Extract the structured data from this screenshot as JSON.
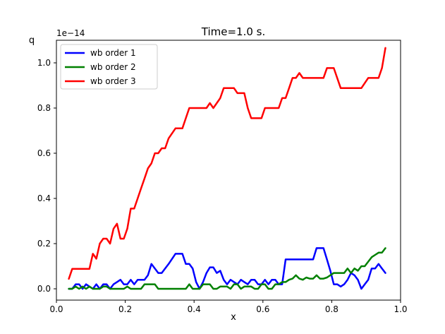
{
  "chart_data": {
    "type": "line",
    "title": "Time=1.0 s.",
    "xlabel": "x",
    "ylabel": "q",
    "y_offset_label": "1e−14",
    "xlim": [
      0.0,
      1.0
    ],
    "ylim": [
      -0.05,
      1.1
    ],
    "x_ticks": [
      0.0,
      0.2,
      0.4,
      0.6,
      0.8,
      1.0
    ],
    "x_tick_labels": [
      "0.0",
      "0.2",
      "0.4",
      "0.6",
      "0.8",
      "1.0"
    ],
    "y_ticks": [
      0.0,
      0.2,
      0.4,
      0.6,
      0.8,
      1.0
    ],
    "y_tick_labels": [
      "0.0",
      "0.2",
      "0.4",
      "0.6",
      "0.8",
      "1.0"
    ],
    "grid": false,
    "legend_position": "top-left",
    "series": [
      {
        "name": "wb order 1",
        "color": "#0000ff",
        "points": [
          [
            0.036,
            0.0
          ],
          [
            0.046,
            0.0
          ],
          [
            0.056,
            0.02
          ],
          [
            0.066,
            0.02
          ],
          [
            0.076,
            0.0
          ],
          [
            0.086,
            0.02
          ],
          [
            0.096,
            0.01
          ],
          [
            0.106,
            0.0
          ],
          [
            0.116,
            0.02
          ],
          [
            0.126,
            0.0
          ],
          [
            0.136,
            0.02
          ],
          [
            0.146,
            0.02
          ],
          [
            0.156,
            0.0
          ],
          [
            0.166,
            0.02
          ],
          [
            0.176,
            0.03
          ],
          [
            0.186,
            0.04
          ],
          [
            0.196,
            0.02
          ],
          [
            0.206,
            0.02
          ],
          [
            0.216,
            0.04
          ],
          [
            0.226,
            0.02
          ],
          [
            0.236,
            0.04
          ],
          [
            0.256,
            0.04
          ],
          [
            0.266,
            0.06
          ],
          [
            0.276,
            0.11
          ],
          [
            0.286,
            0.09
          ],
          [
            0.296,
            0.07
          ],
          [
            0.306,
            0.07
          ],
          [
            0.326,
            0.11
          ],
          [
            0.346,
            0.155
          ],
          [
            0.366,
            0.155
          ],
          [
            0.376,
            0.11
          ],
          [
            0.386,
            0.11
          ],
          [
            0.396,
            0.09
          ],
          [
            0.406,
            0.03
          ],
          [
            0.416,
            0.0
          ],
          [
            0.426,
            0.03
          ],
          [
            0.436,
            0.07
          ],
          [
            0.446,
            0.095
          ],
          [
            0.456,
            0.095
          ],
          [
            0.466,
            0.07
          ],
          [
            0.476,
            0.08
          ],
          [
            0.486,
            0.04
          ],
          [
            0.496,
            0.02
          ],
          [
            0.506,
            0.04
          ],
          [
            0.516,
            0.03
          ],
          [
            0.526,
            0.02
          ],
          [
            0.536,
            0.04
          ],
          [
            0.546,
            0.03
          ],
          [
            0.556,
            0.02
          ],
          [
            0.566,
            0.04
          ],
          [
            0.576,
            0.04
          ],
          [
            0.586,
            0.02
          ],
          [
            0.596,
            0.02
          ],
          [
            0.606,
            0.04
          ],
          [
            0.616,
            0.02
          ],
          [
            0.626,
            0.04
          ],
          [
            0.636,
            0.04
          ],
          [
            0.646,
            0.02
          ],
          [
            0.656,
            0.02
          ],
          [
            0.666,
            0.13
          ],
          [
            0.686,
            0.13
          ],
          [
            0.706,
            0.13
          ],
          [
            0.726,
            0.13
          ],
          [
            0.746,
            0.13
          ],
          [
            0.756,
            0.18
          ],
          [
            0.776,
            0.18
          ],
          [
            0.786,
            0.13
          ],
          [
            0.796,
            0.08
          ],
          [
            0.806,
            0.02
          ],
          [
            0.816,
            0.02
          ],
          [
            0.826,
            0.01
          ],
          [
            0.836,
            0.02
          ],
          [
            0.846,
            0.04
          ],
          [
            0.856,
            0.07
          ],
          [
            0.866,
            0.06
          ],
          [
            0.876,
            0.04
          ],
          [
            0.886,
            0.0
          ],
          [
            0.896,
            0.02
          ],
          [
            0.906,
            0.04
          ],
          [
            0.916,
            0.09
          ],
          [
            0.926,
            0.09
          ],
          [
            0.936,
            0.11
          ],
          [
            0.946,
            0.09
          ],
          [
            0.956,
            0.07
          ]
        ]
      },
      {
        "name": "wb order 2",
        "color": "#008000",
        "points": [
          [
            0.036,
            0.0
          ],
          [
            0.046,
            0.0
          ],
          [
            0.056,
            0.01
          ],
          [
            0.066,
            0.0
          ],
          [
            0.076,
            0.01
          ],
          [
            0.086,
            0.0
          ],
          [
            0.096,
            0.01
          ],
          [
            0.106,
            0.0
          ],
          [
            0.126,
            0.0
          ],
          [
            0.136,
            0.01
          ],
          [
            0.146,
            0.01
          ],
          [
            0.156,
            0.0
          ],
          [
            0.196,
            0.0
          ],
          [
            0.206,
            0.01
          ],
          [
            0.216,
            0.0
          ],
          [
            0.246,
            0.0
          ],
          [
            0.256,
            0.02
          ],
          [
            0.286,
            0.02
          ],
          [
            0.296,
            0.0
          ],
          [
            0.376,
            0.0
          ],
          [
            0.386,
            0.02
          ],
          [
            0.396,
            0.0
          ],
          [
            0.416,
            0.0
          ],
          [
            0.426,
            0.02
          ],
          [
            0.446,
            0.02
          ],
          [
            0.456,
            0.0
          ],
          [
            0.466,
            0.0
          ],
          [
            0.476,
            0.01
          ],
          [
            0.496,
            0.01
          ],
          [
            0.506,
            0.0
          ],
          [
            0.516,
            0.02
          ],
          [
            0.526,
            0.02
          ],
          [
            0.536,
            0.0
          ],
          [
            0.546,
            0.01
          ],
          [
            0.566,
            0.01
          ],
          [
            0.576,
            0.0
          ],
          [
            0.586,
            0.0
          ],
          [
            0.596,
            0.02
          ],
          [
            0.606,
            0.02
          ],
          [
            0.616,
            0.0
          ],
          [
            0.626,
            0.0
          ],
          [
            0.636,
            0.02
          ],
          [
            0.646,
            0.02
          ],
          [
            0.656,
            0.03
          ],
          [
            0.666,
            0.03
          ],
          [
            0.676,
            0.04
          ],
          [
            0.686,
            0.045
          ],
          [
            0.696,
            0.06
          ],
          [
            0.706,
            0.045
          ],
          [
            0.716,
            0.04
          ],
          [
            0.726,
            0.05
          ],
          [
            0.736,
            0.045
          ],
          [
            0.746,
            0.045
          ],
          [
            0.756,
            0.06
          ],
          [
            0.766,
            0.045
          ],
          [
            0.776,
            0.045
          ],
          [
            0.786,
            0.05
          ],
          [
            0.796,
            0.06
          ],
          [
            0.806,
            0.07
          ],
          [
            0.826,
            0.07
          ],
          [
            0.836,
            0.07
          ],
          [
            0.846,
            0.09
          ],
          [
            0.856,
            0.07
          ],
          [
            0.866,
            0.09
          ],
          [
            0.876,
            0.08
          ],
          [
            0.886,
            0.1
          ],
          [
            0.896,
            0.1
          ],
          [
            0.906,
            0.12
          ],
          [
            0.916,
            0.14
          ],
          [
            0.926,
            0.15
          ],
          [
            0.936,
            0.16
          ],
          [
            0.946,
            0.16
          ],
          [
            0.956,
            0.18
          ]
        ]
      },
      {
        "name": "wb order 3",
        "color": "#ff0000",
        "points": [
          [
            0.036,
            0.044
          ],
          [
            0.046,
            0.088
          ],
          [
            0.066,
            0.088
          ],
          [
            0.086,
            0.088
          ],
          [
            0.096,
            0.088
          ],
          [
            0.106,
            0.155
          ],
          [
            0.116,
            0.133
          ],
          [
            0.126,
            0.2
          ],
          [
            0.136,
            0.222
          ],
          [
            0.146,
            0.222
          ],
          [
            0.156,
            0.2
          ],
          [
            0.166,
            0.266
          ],
          [
            0.176,
            0.288
          ],
          [
            0.186,
            0.222
          ],
          [
            0.196,
            0.222
          ],
          [
            0.206,
            0.266
          ],
          [
            0.216,
            0.355
          ],
          [
            0.226,
            0.355
          ],
          [
            0.236,
            0.4
          ],
          [
            0.246,
            0.444
          ],
          [
            0.256,
            0.488
          ],
          [
            0.266,
            0.533
          ],
          [
            0.276,
            0.555
          ],
          [
            0.286,
            0.6
          ],
          [
            0.296,
            0.6
          ],
          [
            0.306,
            0.622
          ],
          [
            0.316,
            0.622
          ],
          [
            0.326,
            0.666
          ],
          [
            0.336,
            0.688
          ],
          [
            0.346,
            0.71
          ],
          [
            0.366,
            0.71
          ],
          [
            0.376,
            0.755
          ],
          [
            0.386,
            0.8
          ],
          [
            0.396,
            0.8
          ],
          [
            0.416,
            0.8
          ],
          [
            0.436,
            0.8
          ],
          [
            0.446,
            0.822
          ],
          [
            0.456,
            0.8
          ],
          [
            0.466,
            0.822
          ],
          [
            0.476,
            0.844
          ],
          [
            0.486,
            0.888
          ],
          [
            0.516,
            0.888
          ],
          [
            0.526,
            0.866
          ],
          [
            0.546,
            0.866
          ],
          [
            0.556,
            0.8
          ],
          [
            0.566,
            0.755
          ],
          [
            0.596,
            0.755
          ],
          [
            0.606,
            0.8
          ],
          [
            0.646,
            0.8
          ],
          [
            0.656,
            0.844
          ],
          [
            0.666,
            0.844
          ],
          [
            0.676,
            0.888
          ],
          [
            0.686,
            0.933
          ],
          [
            0.696,
            0.933
          ],
          [
            0.706,
            0.955
          ],
          [
            0.716,
            0.933
          ],
          [
            0.746,
            0.933
          ],
          [
            0.776,
            0.933
          ],
          [
            0.786,
            0.977
          ],
          [
            0.806,
            0.977
          ],
          [
            0.826,
            0.888
          ],
          [
            0.846,
            0.888
          ],
          [
            0.886,
            0.888
          ],
          [
            0.906,
            0.933
          ],
          [
            0.936,
            0.933
          ],
          [
            0.946,
            0.977
          ],
          [
            0.956,
            1.066
          ]
        ]
      }
    ]
  }
}
